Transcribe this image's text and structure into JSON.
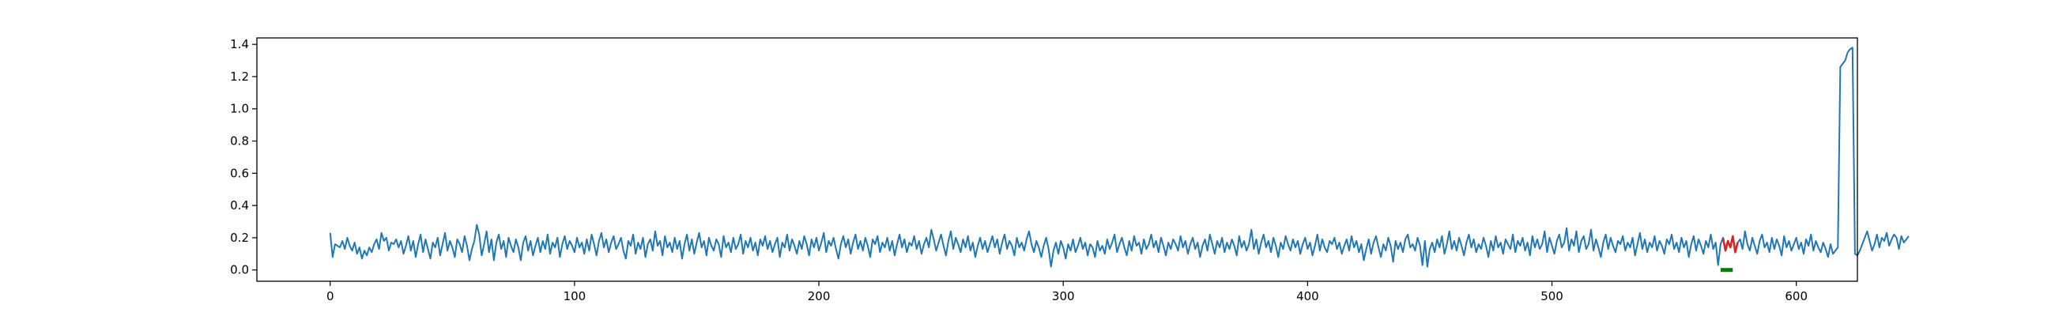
{
  "colors": {
    "series_line": "#1f77b4",
    "anomaly_line": "#d62728",
    "marker": "#008000",
    "axes": "#000000",
    "background": "#ffffff"
  },
  "chart_data": {
    "type": "line",
    "title": "",
    "xlabel": "",
    "ylabel": "",
    "xlim": [
      -30,
      625
    ],
    "ylim": [
      -0.07,
      1.44
    ],
    "xticks": [
      0,
      100,
      200,
      300,
      400,
      500,
      600
    ],
    "yticks": [
      0.0,
      0.2,
      0.4,
      0.6,
      0.8,
      1.0,
      1.2,
      1.4
    ],
    "xtick_labels": [
      "0",
      "100",
      "200",
      "300",
      "400",
      "500",
      "600"
    ],
    "ytick_labels": [
      "0.0",
      "0.2",
      "0.4",
      "0.6",
      "0.8",
      "1.0",
      "1.2",
      "1.4"
    ],
    "grid": false,
    "legend": "none",
    "x_start": 0,
    "series": [
      {
        "values": [
          0.23,
          0.08,
          0.16,
          0.15,
          0.14,
          0.18,
          0.13,
          0.2,
          0.15,
          0.12,
          0.17,
          0.1,
          0.14,
          0.07,
          0.12,
          0.09,
          0.14,
          0.11,
          0.16,
          0.19,
          0.13,
          0.23,
          0.18,
          0.2,
          0.12,
          0.17,
          0.16,
          0.19,
          0.14,
          0.18,
          0.1,
          0.15,
          0.21,
          0.12,
          0.18,
          0.08,
          0.16,
          0.22,
          0.11,
          0.19,
          0.13,
          0.07,
          0.17,
          0.14,
          0.2,
          0.09,
          0.16,
          0.23,
          0.12,
          0.18,
          0.14,
          0.08,
          0.19,
          0.16,
          0.11,
          0.21,
          0.15,
          0.06,
          0.13,
          0.18,
          0.28,
          0.22,
          0.09,
          0.16,
          0.24,
          0.11,
          0.19,
          0.06,
          0.17,
          0.22,
          0.13,
          0.18,
          0.08,
          0.2,
          0.15,
          0.11,
          0.19,
          0.14,
          0.06,
          0.17,
          0.21,
          0.12,
          0.18,
          0.09,
          0.15,
          0.2,
          0.11,
          0.18,
          0.13,
          0.22,
          0.1,
          0.17,
          0.14,
          0.2,
          0.08,
          0.16,
          0.21,
          0.13,
          0.18,
          0.15,
          0.11,
          0.2,
          0.14,
          0.17,
          0.1,
          0.19,
          0.12,
          0.22,
          0.16,
          0.09,
          0.18,
          0.23,
          0.14,
          0.19,
          0.11,
          0.17,
          0.21,
          0.13,
          0.16,
          0.2,
          0.12,
          0.07,
          0.18,
          0.15,
          0.22,
          0.1,
          0.17,
          0.13,
          0.2,
          0.08,
          0.16,
          0.19,
          0.12,
          0.24,
          0.15,
          0.18,
          0.09,
          0.21,
          0.14,
          0.17,
          0.11,
          0.2,
          0.13,
          0.18,
          0.07,
          0.16,
          0.22,
          0.12,
          0.19,
          0.1,
          0.17,
          0.23,
          0.14,
          0.18,
          0.09,
          0.2,
          0.15,
          0.12,
          0.19,
          0.16,
          0.08,
          0.21,
          0.14,
          0.17,
          0.11,
          0.2,
          0.13,
          0.16,
          0.22,
          0.1,
          0.18,
          0.14,
          0.2,
          0.12,
          0.17,
          0.09,
          0.19,
          0.15,
          0.21,
          0.13,
          0.18,
          0.11,
          0.16,
          0.2,
          0.08,
          0.17,
          0.14,
          0.22,
          0.12,
          0.19,
          0.15,
          0.1,
          0.18,
          0.13,
          0.21,
          0.16,
          0.09,
          0.19,
          0.14,
          0.2,
          0.12,
          0.17,
          0.23,
          0.11,
          0.18,
          0.15,
          0.2,
          0.13,
          0.07,
          0.16,
          0.21,
          0.14,
          0.19,
          0.1,
          0.17,
          0.22,
          0.13,
          0.18,
          0.12,
          0.2,
          0.15,
          0.08,
          0.19,
          0.16,
          0.21,
          0.11,
          0.17,
          0.14,
          0.2,
          0.12,
          0.18,
          0.09,
          0.16,
          0.22,
          0.14,
          0.19,
          0.11,
          0.17,
          0.15,
          0.21,
          0.13,
          0.18,
          0.1,
          0.16,
          0.2,
          0.14,
          0.25,
          0.19,
          0.12,
          0.17,
          0.22,
          0.15,
          0.09,
          0.18,
          0.24,
          0.13,
          0.2,
          0.16,
          0.11,
          0.19,
          0.14,
          0.21,
          0.12,
          0.17,
          0.08,
          0.15,
          0.2,
          0.13,
          0.18,
          0.11,
          0.16,
          0.21,
          0.14,
          0.19,
          0.1,
          0.17,
          0.22,
          0.13,
          0.18,
          0.15,
          0.09,
          0.2,
          0.14,
          0.17,
          0.12,
          0.19,
          0.24,
          0.16,
          0.11,
          0.18,
          0.14,
          0.08,
          0.15,
          0.2,
          0.13,
          0.02,
          0.12,
          0.17,
          0.1,
          0.18,
          0.14,
          0.07,
          0.16,
          0.12,
          0.19,
          0.11,
          0.15,
          0.2,
          0.13,
          0.17,
          0.09,
          0.16,
          0.14,
          0.08,
          0.18,
          0.12,
          0.15,
          0.1,
          0.19,
          0.13,
          0.17,
          0.22,
          0.11,
          0.16,
          0.2,
          0.14,
          0.09,
          0.18,
          0.12,
          0.21,
          0.15,
          0.17,
          0.1,
          0.19,
          0.13,
          0.16,
          0.22,
          0.14,
          0.18,
          0.11,
          0.2,
          0.15,
          0.09,
          0.17,
          0.13,
          0.19,
          0.16,
          0.12,
          0.21,
          0.14,
          0.18,
          0.1,
          0.16,
          0.2,
          0.13,
          0.17,
          0.08,
          0.15,
          0.19,
          0.12,
          0.22,
          0.16,
          0.1,
          0.18,
          0.14,
          0.2,
          0.11,
          0.17,
          0.13,
          0.19,
          0.15,
          0.09,
          0.21,
          0.14,
          0.18,
          0.12,
          0.16,
          0.25,
          0.13,
          0.19,
          0.1,
          0.17,
          0.22,
          0.14,
          0.18,
          0.11,
          0.2,
          0.15,
          0.08,
          0.17,
          0.13,
          0.21,
          0.16,
          0.12,
          0.19,
          0.14,
          0.18,
          0.1,
          0.16,
          0.2,
          0.13,
          0.17,
          0.09,
          0.15,
          0.22,
          0.12,
          0.19,
          0.14,
          0.11,
          0.18,
          0.16,
          0.2,
          0.13,
          0.17,
          0.1,
          0.15,
          0.19,
          0.12,
          0.21,
          0.14,
          0.18,
          0.11,
          0.16,
          0.06,
          0.13,
          0.19,
          0.1,
          0.17,
          0.21,
          0.14,
          0.08,
          0.16,
          0.12,
          0.2,
          0.15,
          0.05,
          0.18,
          0.13,
          0.17,
          0.11,
          0.19,
          0.22,
          0.14,
          0.16,
          0.12,
          0.2,
          0.15,
          0.03,
          0.18,
          0.02,
          0.13,
          0.17,
          0.11,
          0.19,
          0.14,
          0.21,
          0.1,
          0.16,
          0.24,
          0.13,
          0.18,
          0.12,
          0.2,
          0.15,
          0.09,
          0.17,
          0.22,
          0.14,
          0.19,
          0.11,
          0.16,
          0.13,
          0.2,
          0.15,
          0.08,
          0.18,
          0.12,
          0.21,
          0.14,
          0.17,
          0.1,
          0.19,
          0.16,
          0.13,
          0.22,
          0.11,
          0.18,
          0.15,
          0.2,
          0.12,
          0.17,
          0.09,
          0.21,
          0.14,
          0.19,
          0.13,
          0.16,
          0.24,
          0.11,
          0.2,
          0.15,
          0.1,
          0.18,
          0.22,
          0.14,
          0.17,
          0.26,
          0.12,
          0.19,
          0.15,
          0.24,
          0.11,
          0.18,
          0.21,
          0.13,
          0.16,
          0.25,
          0.12,
          0.19,
          0.14,
          0.08,
          0.17,
          0.22,
          0.13,
          0.2,
          0.15,
          0.11,
          0.18,
          0.16,
          0.21,
          0.12,
          0.17,
          0.14,
          0.2,
          0.09,
          0.16,
          0.23,
          0.13,
          0.19,
          0.11,
          0.17,
          0.14,
          0.21,
          0.12,
          0.18,
          0.15,
          0.1,
          0.19,
          0.16,
          0.22,
          0.13,
          0.17,
          0.11,
          0.2,
          0.14,
          0.18,
          0.08,
          0.16,
          0.21,
          0.12,
          0.19,
          0.15,
          0.1,
          0.18,
          0.14,
          0.22,
          0.13,
          0.17,
          0.03,
          0.16,
          0.2,
          0.12,
          0.18,
          0.14,
          0.21,
          0.11,
          0.17,
          0.19,
          0.13,
          0.24,
          0.16,
          0.12,
          0.2,
          0.15,
          0.1,
          0.18,
          0.22,
          0.14,
          0.17,
          0.11,
          0.2,
          0.13,
          0.19,
          0.15,
          0.09,
          0.21,
          0.14,
          0.18,
          0.12,
          0.16,
          0.2,
          0.13,
          0.17,
          0.1,
          0.19,
          0.15,
          0.22,
          0.12,
          0.18,
          0.14,
          0.11,
          0.17,
          0.13,
          0.08,
          0.16,
          0.1,
          0.12,
          0.14,
          1.26,
          1.28,
          1.3,
          1.35,
          1.37,
          1.38,
          0.1,
          0.09,
          0.12,
          0.16,
          0.2,
          0.24,
          0.18,
          0.12,
          0.16,
          0.22,
          0.14,
          0.2,
          0.18,
          0.23,
          0.15,
          0.19,
          0.22,
          0.2,
          0.13,
          0.21,
          0.17,
          0.19,
          0.21
        ]
      }
    ],
    "anomaly_range": [
      570,
      576
    ],
    "marker_range": [
      569,
      574
    ],
    "marker_y": 0.0
  }
}
